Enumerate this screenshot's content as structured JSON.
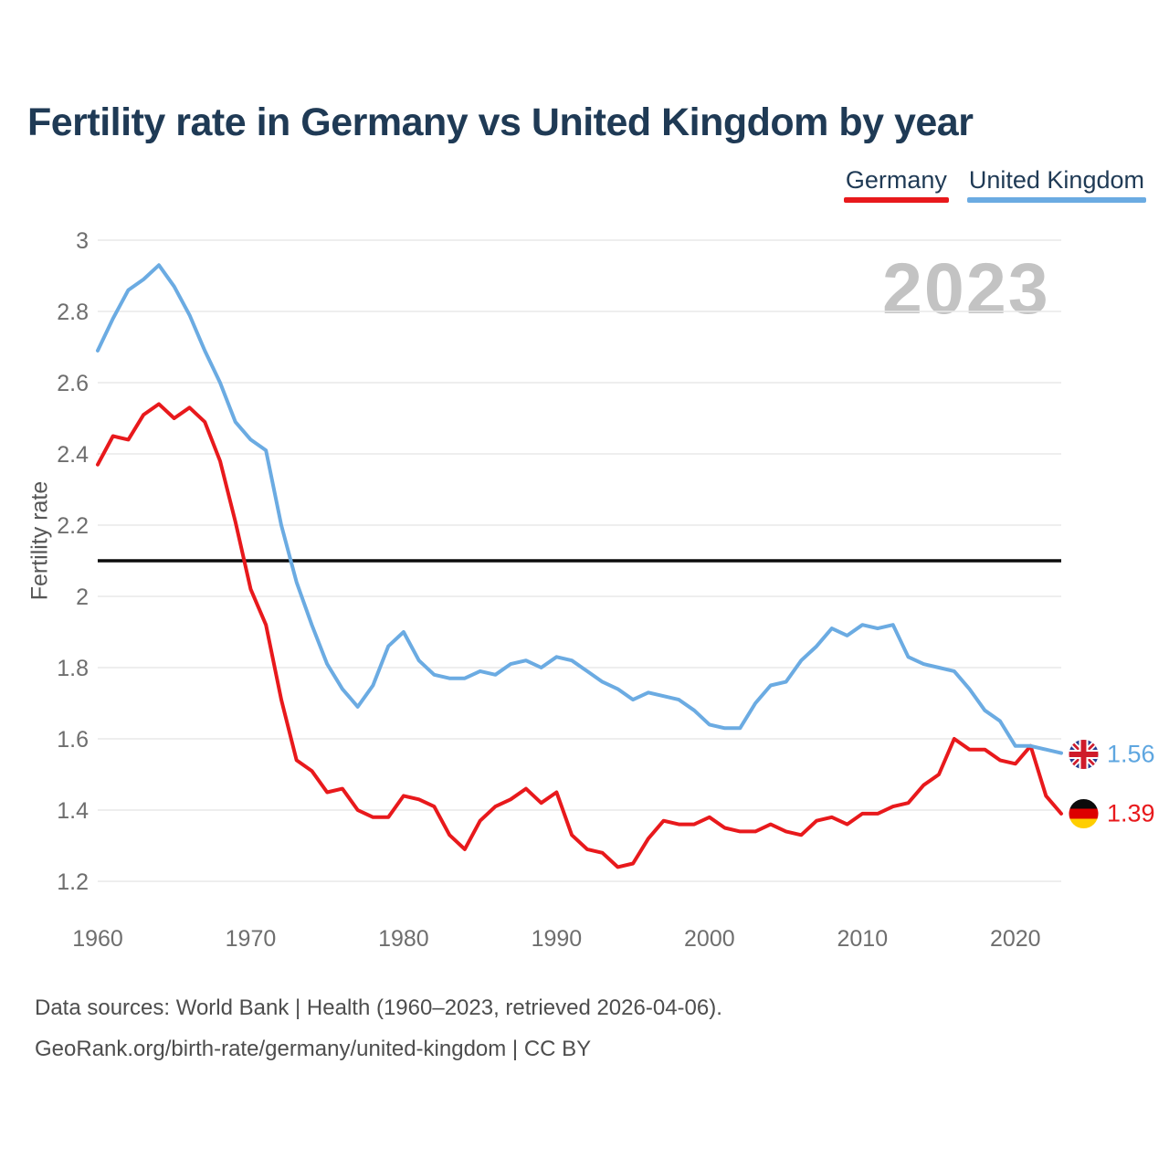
{
  "header": {
    "title": "Fertility rate in Germany vs United Kingdom by year"
  },
  "legend": [
    {
      "label": "Germany",
      "color": "#e8191c"
    },
    {
      "label": "United Kingdom",
      "color": "#6babe2"
    }
  ],
  "watermark": "2023",
  "end_labels": [
    {
      "series": "United Kingdom",
      "value": "1.56",
      "flag": "uk-flag-icon",
      "color": "#5ea6e0"
    },
    {
      "series": "Germany",
      "value": "1.39",
      "flag": "germany-flag-icon",
      "color": "#e8191c"
    }
  ],
  "footer": {
    "line1": "Data sources: World Bank | Health (1960–2023, retrieved 2026-04-06).",
    "line2": "GeoRank.org/birth-rate/germany/united-kingdom | CC BY"
  },
  "chart_data": {
    "type": "line",
    "title": "Fertility rate in Germany vs United Kingdom by year",
    "xlabel": "",
    "ylabel": "Fertility rate",
    "x": [
      1960,
      1961,
      1962,
      1963,
      1964,
      1965,
      1966,
      1967,
      1968,
      1969,
      1970,
      1971,
      1972,
      1973,
      1974,
      1975,
      1976,
      1977,
      1978,
      1979,
      1980,
      1981,
      1982,
      1983,
      1984,
      1985,
      1986,
      1987,
      1988,
      1989,
      1990,
      1991,
      1992,
      1993,
      1994,
      1995,
      1996,
      1997,
      1998,
      1999,
      2000,
      2001,
      2002,
      2003,
      2004,
      2005,
      2006,
      2007,
      2008,
      2009,
      2010,
      2011,
      2012,
      2013,
      2014,
      2015,
      2016,
      2017,
      2018,
      2019,
      2020,
      2021,
      2022,
      2023
    ],
    "series": [
      {
        "name": "Germany",
        "color": "#e8191c",
        "values": [
          2.37,
          2.45,
          2.44,
          2.51,
          2.54,
          2.5,
          2.53,
          2.49,
          2.38,
          2.21,
          2.02,
          1.92,
          1.71,
          1.54,
          1.51,
          1.45,
          1.46,
          1.4,
          1.38,
          1.38,
          1.44,
          1.43,
          1.41,
          1.33,
          1.29,
          1.37,
          1.41,
          1.43,
          1.46,
          1.42,
          1.45,
          1.33,
          1.29,
          1.28,
          1.24,
          1.25,
          1.32,
          1.37,
          1.36,
          1.36,
          1.38,
          1.35,
          1.34,
          1.34,
          1.36,
          1.34,
          1.33,
          1.37,
          1.38,
          1.36,
          1.39,
          1.39,
          1.41,
          1.42,
          1.47,
          1.5,
          1.6,
          1.57,
          1.57,
          1.54,
          1.53,
          1.58,
          1.44,
          1.39
        ]
      },
      {
        "name": "United Kingdom",
        "color": "#6babe2",
        "values": [
          2.69,
          2.78,
          2.86,
          2.89,
          2.93,
          2.87,
          2.79,
          2.69,
          2.6,
          2.49,
          2.44,
          2.41,
          2.2,
          2.04,
          1.92,
          1.81,
          1.74,
          1.69,
          1.75,
          1.86,
          1.9,
          1.82,
          1.78,
          1.77,
          1.77,
          1.79,
          1.78,
          1.81,
          1.82,
          1.8,
          1.83,
          1.82,
          1.79,
          1.76,
          1.74,
          1.71,
          1.73,
          1.72,
          1.71,
          1.68,
          1.64,
          1.63,
          1.63,
          1.7,
          1.75,
          1.76,
          1.82,
          1.86,
          1.91,
          1.89,
          1.92,
          1.91,
          1.92,
          1.83,
          1.81,
          1.8,
          1.79,
          1.74,
          1.68,
          1.65,
          1.58,
          1.58,
          1.57,
          1.56
        ]
      }
    ],
    "ylim": [
      1.2,
      3.0
    ],
    "y_ticks": [
      3,
      2.8,
      2.6,
      2.4,
      2.2,
      2,
      1.8,
      1.6,
      1.4,
      1.2
    ],
    "x_ticks": [
      1960,
      1970,
      1980,
      1990,
      2000,
      2010,
      2020
    ],
    "reference_line": 2.1,
    "grid": "horizontal",
    "legend_position": "top-right",
    "final_values": {
      "Germany": 1.39,
      "United Kingdom": 1.56
    }
  }
}
